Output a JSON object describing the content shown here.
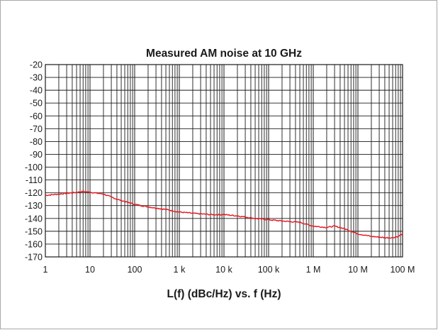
{
  "chart_data": {
    "type": "line",
    "title": "Measured AM noise at 10 GHz",
    "xlabel": "L(f) (dBc/Hz) vs. f (Hz)",
    "ylabel": "",
    "x_scale": "log",
    "xlim": [
      1,
      100000000
    ],
    "ylim": [
      -170,
      -20
    ],
    "y_ticks": [
      -20,
      -30,
      -40,
      -50,
      -60,
      -70,
      -80,
      -90,
      -100,
      -110,
      -120,
      -130,
      -140,
      -150,
      -160,
      -170
    ],
    "y_tick_labels": [
      "-20",
      "-30",
      "-40",
      "-50",
      "-60",
      "-70",
      "-80",
      "-90",
      "-100",
      "-110",
      "-120",
      "-130",
      "-140",
      "-150",
      "-160",
      "-170"
    ],
    "x_ticks": [
      1,
      10,
      100,
      1000,
      10000,
      100000,
      1000000,
      10000000,
      100000000
    ],
    "x_tick_labels": [
      "1",
      "10",
      "100",
      "1 k",
      "10 k",
      "100 k",
      "1 M",
      "10 M",
      "100 M"
    ],
    "grid": true,
    "line_color": "#e8141e",
    "series": [
      {
        "x": [
          1,
          2,
          4,
          7,
          10,
          20,
          40,
          100,
          200,
          500,
          1000,
          2000,
          5000,
          10000,
          20000,
          50000,
          100000,
          200000,
          500000,
          1000000,
          2000000,
          3000000,
          5000000,
          10000000,
          20000000,
          40000000,
          60000000,
          80000000,
          100000000
        ],
        "y": [
          -122,
          -121,
          -120,
          -119,
          -119.5,
          -121,
          -125,
          -129,
          -131,
          -133,
          -135,
          -136,
          -137,
          -137,
          -138,
          -140,
          -141,
          -142,
          -143,
          -146,
          -147,
          -146,
          -148,
          -152,
          -154,
          -155,
          -155,
          -154,
          -152
        ]
      }
    ]
  }
}
